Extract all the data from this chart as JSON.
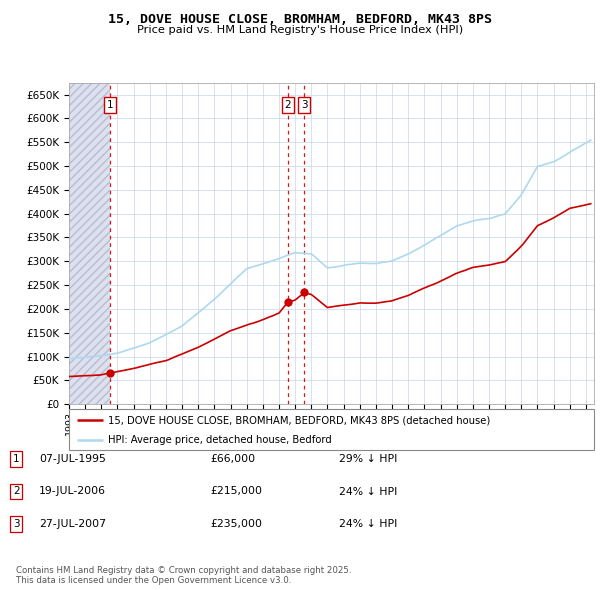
{
  "title": "15, DOVE HOUSE CLOSE, BROMHAM, BEDFORD, MK43 8PS",
  "subtitle": "Price paid vs. HM Land Registry's House Price Index (HPI)",
  "transactions": [
    {
      "num": 1,
      "date_x": 1995.52,
      "price": 66000
    },
    {
      "num": 2,
      "date_x": 2006.54,
      "price": 215000
    },
    {
      "num": 3,
      "date_x": 2007.57,
      "price": 235000
    }
  ],
  "legend_line1": "15, DOVE HOUSE CLOSE, BROMHAM, BEDFORD, MK43 8PS (detached house)",
  "legend_line2": "HPI: Average price, detached house, Bedford",
  "footer": "Contains HM Land Registry data © Crown copyright and database right 2025.\nThis data is licensed under the Open Government Licence v3.0.",
  "table_rows": [
    {
      "num": 1,
      "date": "07-JUL-1995",
      "price": "£66,000",
      "note": "29% ↓ HPI"
    },
    {
      "num": 2,
      "date": "19-JUL-2006",
      "price": "£215,000",
      "note": "24% ↓ HPI"
    },
    {
      "num": 3,
      "date": "27-JUL-2007",
      "price": "£235,000",
      "note": "24% ↓ HPI"
    }
  ],
  "ylim": [
    0,
    675000
  ],
  "xlim": [
    1993.0,
    2025.5
  ],
  "hpi_color": "#add8f0",
  "price_color": "#cc0000",
  "vline_color": "#cc0000",
  "hatch_color": "#dde0ee"
}
